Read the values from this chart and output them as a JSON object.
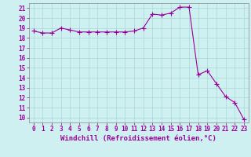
{
  "x": [
    0,
    1,
    2,
    3,
    4,
    5,
    6,
    7,
    8,
    9,
    10,
    11,
    12,
    13,
    14,
    15,
    16,
    17,
    18,
    19,
    20,
    21,
    22,
    23
  ],
  "y": [
    18.7,
    18.5,
    18.5,
    19.0,
    18.8,
    18.6,
    18.6,
    18.6,
    18.6,
    18.6,
    18.6,
    18.7,
    19.0,
    20.4,
    20.3,
    20.5,
    21.1,
    21.1,
    14.3,
    14.7,
    13.4,
    12.1,
    11.5,
    9.8
  ],
  "line_color": "#990099",
  "marker": "+",
  "marker_size": 4,
  "bg_color": "#cff0f0",
  "grid_color": "#aad8d8",
  "xlabel": "Windchill (Refroidissement éolien,°C)",
  "xlabel_fontsize": 6.5,
  "tick_fontsize": 5.5,
  "ylim": [
    9.5,
    21.5
  ],
  "yticks": [
    10,
    11,
    12,
    13,
    14,
    15,
    16,
    17,
    18,
    19,
    20,
    21
  ],
  "xlim": [
    -0.5,
    23.5
  ],
  "xticks": [
    0,
    1,
    2,
    3,
    4,
    5,
    6,
    7,
    8,
    9,
    10,
    11,
    12,
    13,
    14,
    15,
    16,
    17,
    18,
    19,
    20,
    21,
    22,
    23
  ]
}
